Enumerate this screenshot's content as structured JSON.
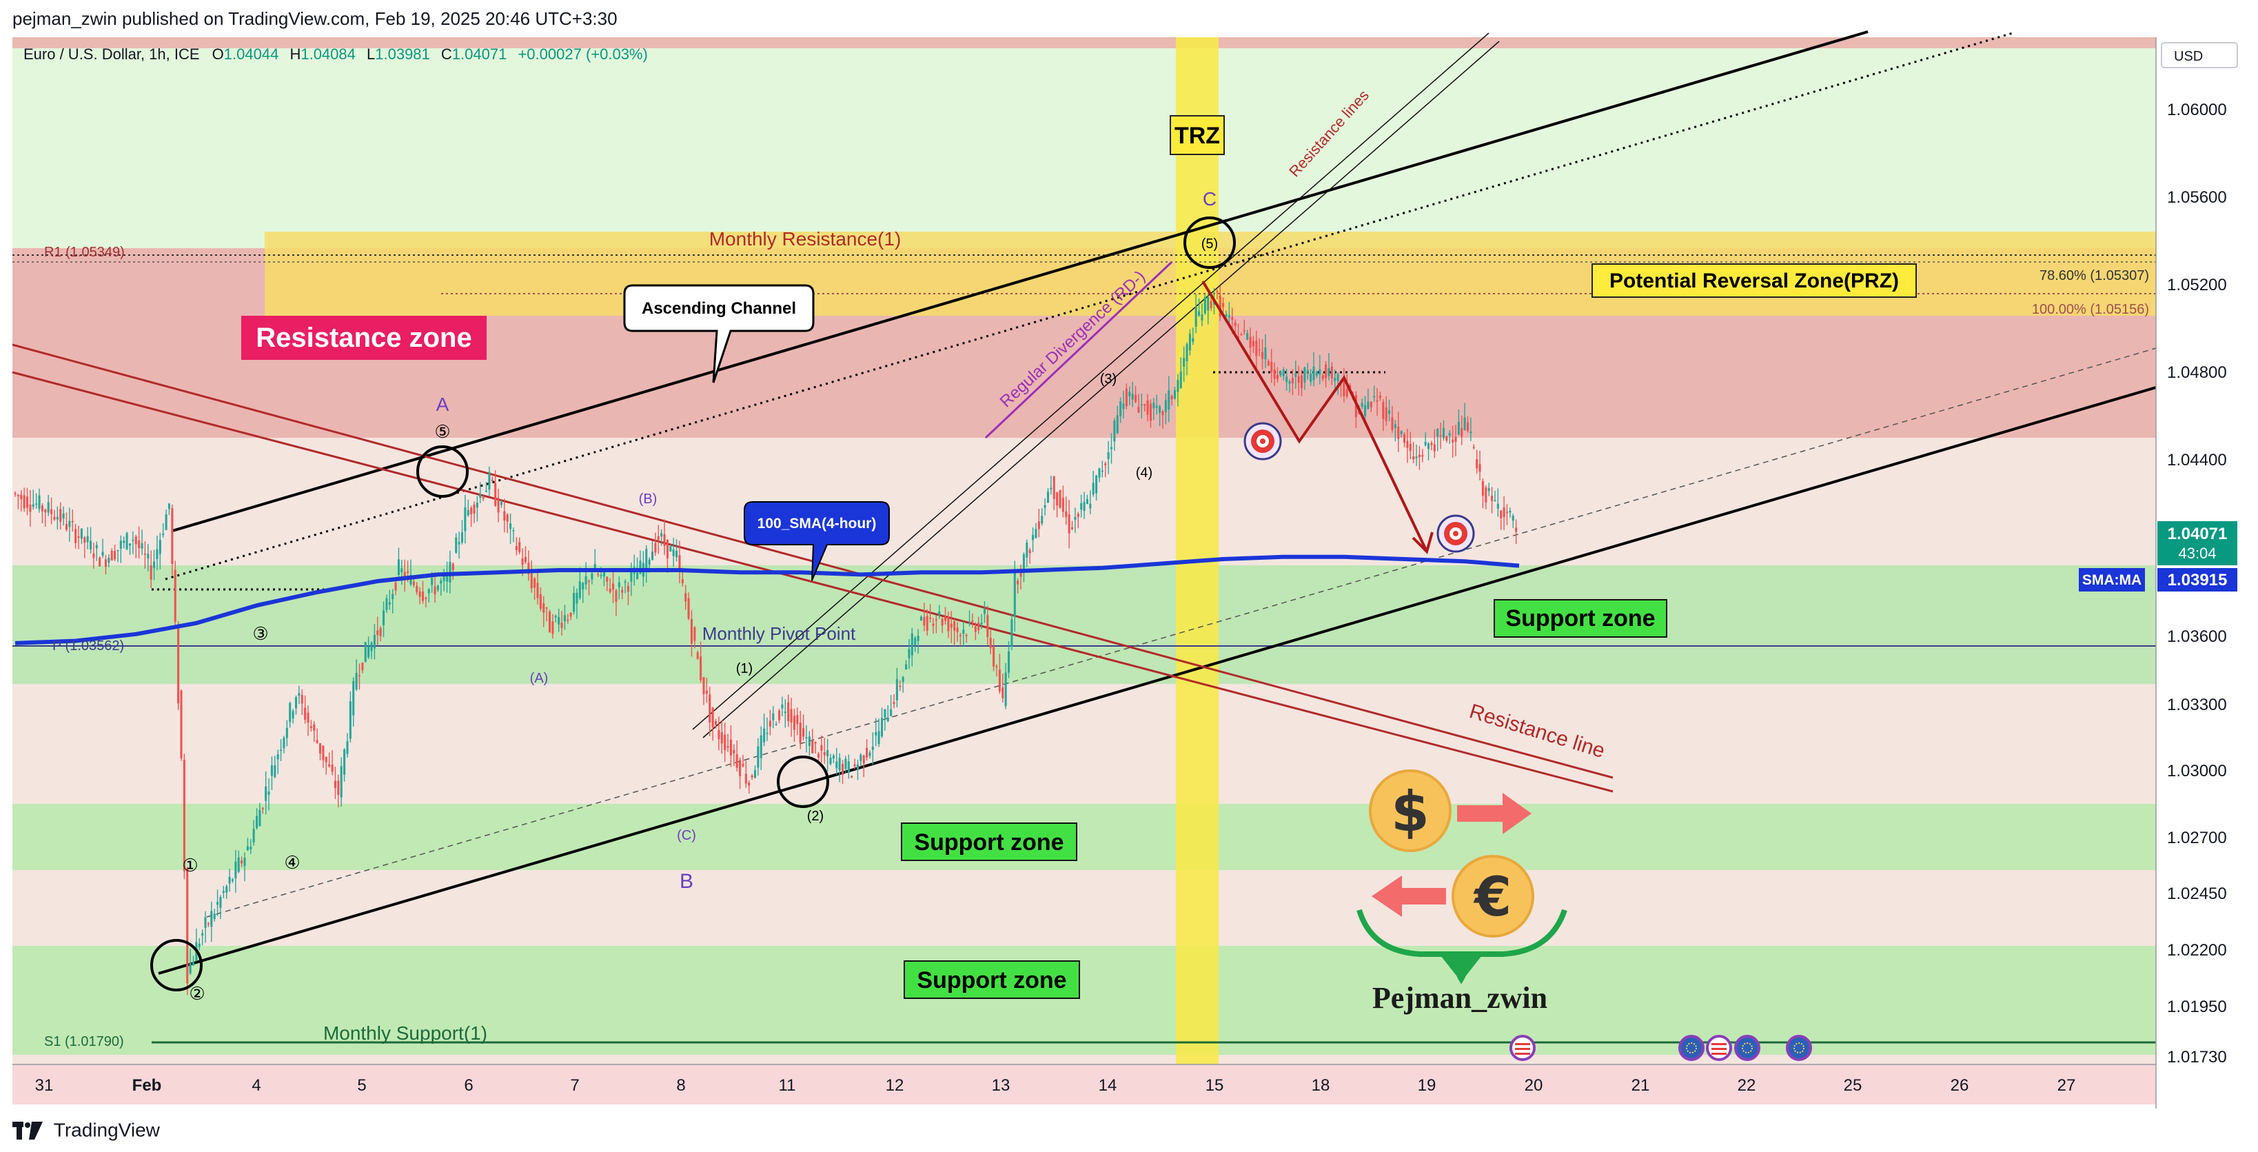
{
  "header": {
    "publisher": "pejman_zwin published on TradingView.com, Feb 19, 2025 20:46 UTC+3:30"
  },
  "footer": {
    "brand": "TradingView"
  },
  "legend": {
    "symbol": "Euro / U.S. Dollar, 1h, ICE",
    "o_label": "O",
    "o_value": "1.04044",
    "h_label": "H",
    "h_value": "1.04084",
    "l_label": "L",
    "l_value": "1.03981",
    "c_label": "C",
    "c_value": "1.04071",
    "change": "+0.00027 (+0.03%)"
  },
  "price_axis": {
    "currency": "USD",
    "current_price": "1.04071",
    "countdown": "43:04",
    "sma_label": "SMA:MA",
    "sma_value": "1.03915"
  },
  "colors": {
    "bull": "#26a69a",
    "bear": "#ef5350",
    "sma": "#1a35d8",
    "resistance_label_bg": "#e91e63",
    "support_label_bg": "#43e043",
    "prz_label_bg": "#ffeb3b",
    "trz_band": "#f7e94c"
  },
  "chart_data": {
    "type": "candlestick",
    "title": "",
    "x_ticks": [
      "31",
      "Feb",
      "4",
      "5",
      "6",
      "7",
      "8",
      "11",
      "12",
      "13",
      "14",
      "15",
      "18",
      "19",
      "20",
      "21",
      "22",
      "25",
      "26",
      "27"
    ],
    "y_ticks": [
      "1.06000",
      "1.05600",
      "1.05200",
      "1.04800",
      "1.04400",
      "1.03600",
      "1.03300",
      "1.03000",
      "1.02700",
      "1.02450",
      "1.02200",
      "1.01950",
      "1.01730"
    ],
    "ylim": [
      1.0165,
      1.0642
    ],
    "sma_name": "100_SMA(4-hour)",
    "price_path": [
      [
        0,
        1.0425
      ],
      [
        15,
        1.0415
      ],
      [
        30,
        1.0395
      ],
      [
        40,
        1.0405
      ],
      [
        46,
        1.039
      ],
      [
        52,
        1.042
      ],
      [
        56,
        1.0305
      ],
      [
        58,
        1.021
      ],
      [
        62,
        1.0225
      ],
      [
        70,
        1.0245
      ],
      [
        78,
        1.0265
      ],
      [
        86,
        1.03
      ],
      [
        94,
        1.0335
      ],
      [
        102,
        1.031
      ],
      [
        108,
        1.029
      ],
      [
        114,
        1.0345
      ],
      [
        122,
        1.0365
      ],
      [
        128,
        1.039
      ],
      [
        136,
        1.038
      ],
      [
        144,
        1.0385
      ],
      [
        150,
        1.0415
      ],
      [
        158,
        1.043
      ],
      [
        164,
        1.041
      ],
      [
        172,
        1.0385
      ],
      [
        178,
        1.0365
      ],
      [
        184,
        1.037
      ],
      [
        192,
        1.039
      ],
      [
        200,
        1.038
      ],
      [
        208,
        1.039
      ],
      [
        214,
        1.0405
      ],
      [
        220,
        1.0395
      ],
      [
        226,
        1.0355
      ],
      [
        232,
        1.032
      ],
      [
        238,
        1.031
      ],
      [
        244,
        1.0295
      ],
      [
        250,
        1.032
      ],
      [
        256,
        1.033
      ],
      [
        262,
        1.0315
      ],
      [
        270,
        1.0305
      ],
      [
        278,
        1.03
      ],
      [
        286,
        1.0315
      ],
      [
        294,
        1.034
      ],
      [
        300,
        1.0365
      ],
      [
        306,
        1.037
      ],
      [
        314,
        1.0362
      ],
      [
        322,
        1.0368
      ],
      [
        328,
        1.033
      ],
      [
        332,
        1.0385
      ],
      [
        338,
        1.0405
      ],
      [
        344,
        1.043
      ],
      [
        350,
        1.041
      ],
      [
        356,
        1.042
      ],
      [
        362,
        1.044
      ],
      [
        368,
        1.047
      ],
      [
        374,
        1.0465
      ],
      [
        380,
        1.046
      ],
      [
        386,
        1.0475
      ],
      [
        392,
        1.0505
      ],
      [
        398,
        1.0515
      ],
      [
        404,
        1.05
      ],
      [
        410,
        1.0495
      ],
      [
        416,
        1.0485
      ],
      [
        422,
        1.0475
      ],
      [
        428,
        1.0478
      ],
      [
        434,
        1.0482
      ],
      [
        440,
        1.0476
      ],
      [
        446,
        1.0462
      ],
      [
        452,
        1.0468
      ],
      [
        458,
        1.0455
      ],
      [
        464,
        1.044
      ],
      [
        470,
        1.0448
      ],
      [
        476,
        1.0452
      ],
      [
        482,
        1.0455
      ],
      [
        486,
        1.043
      ],
      [
        490,
        1.042
      ],
      [
        494,
        1.0418
      ],
      [
        498,
        1.0408
      ]
    ],
    "sma_path": [
      [
        0,
        1.0357
      ],
      [
        20,
        1.0358
      ],
      [
        40,
        1.0361
      ],
      [
        60,
        1.0366
      ],
      [
        80,
        1.0374
      ],
      [
        100,
        1.038
      ],
      [
        120,
        1.0385
      ],
      [
        140,
        1.0388
      ],
      [
        160,
        1.0389
      ],
      [
        180,
        1.039
      ],
      [
        200,
        1.039
      ],
      [
        220,
        1.039
      ],
      [
        240,
        1.0389
      ],
      [
        260,
        1.0389
      ],
      [
        280,
        1.0388
      ],
      [
        300,
        1.0389
      ],
      [
        320,
        1.0389
      ],
      [
        340,
        1.039
      ],
      [
        360,
        1.0391
      ],
      [
        380,
        1.0393
      ],
      [
        400,
        1.0395
      ],
      [
        420,
        1.0396
      ],
      [
        440,
        1.0396
      ],
      [
        460,
        1.0395
      ],
      [
        480,
        1.0394
      ],
      [
        498,
        1.0392
      ]
    ],
    "annotations": {
      "resistance_zone": "Resistance zone",
      "monthly_resistance": "Monthly Resistance(1)",
      "r1_label": "R1 (1.05349)",
      "ascending_channel": "Ascending Channel",
      "prz": "Potential Reversal Zone(PRZ)",
      "fib_786": "78.60% (1.05307)",
      "fib_100": "100.00% (1.05156)",
      "trz": "TRZ",
      "resistance_lines": "Resistance lines",
      "regular_divergence": "Regular Divergence (RD-)",
      "monthly_pivot": "Monthly Pivot Point",
      "p_label": "P (1.03562)",
      "support_zone": "Support zone",
      "resistance_line": "Resistance line",
      "monthly_support": "Monthly Support(1)",
      "s1_label": "S1 (1.01790)",
      "brand_signature": "Pejman_zwin",
      "wave_A": "A",
      "wave_B": "B",
      "wave_C": "C",
      "wave_5": "⑤",
      "wave_1": "①",
      "wave_2": "②",
      "wave_3": "③",
      "wave_4": "④",
      "wave_p5": "(5)",
      "wave_p1": "(1)",
      "wave_p2": "(2)",
      "wave_p3": "(3)",
      "wave_p4": "(4)",
      "wave_pA": "(A)",
      "wave_pB": "(B)",
      "wave_pC": "(C)"
    }
  }
}
